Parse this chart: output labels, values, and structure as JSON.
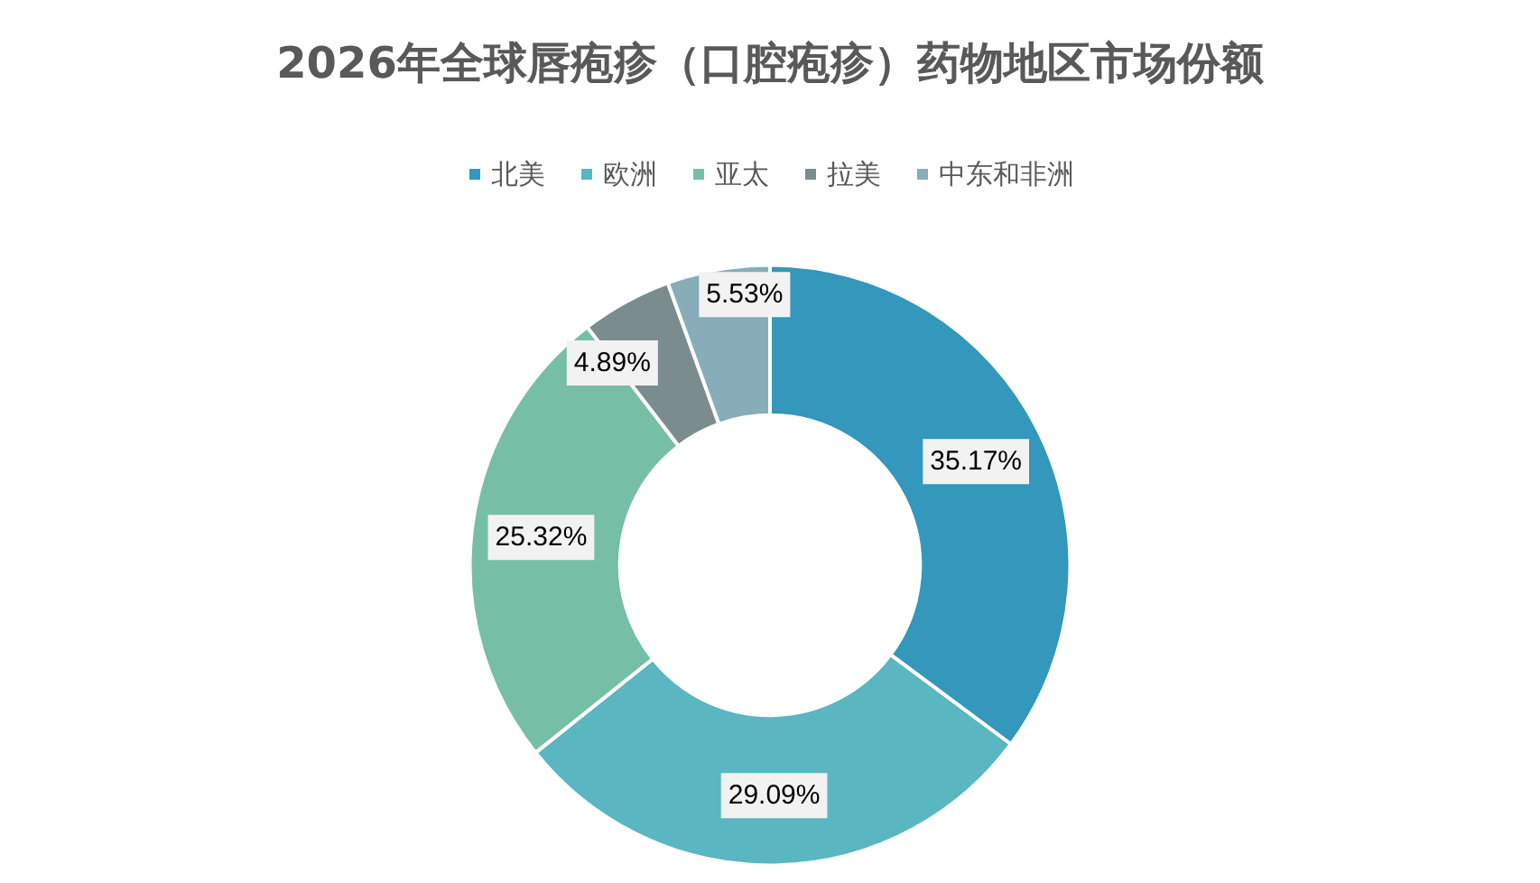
{
  "chart_data": {
    "type": "donut",
    "title": "2026年全球唇疱疹（口腔疱疹）药物地区市场份额",
    "categories": [
      "北美",
      "欧洲",
      "亚太",
      "拉美",
      "中东和非洲"
    ],
    "values": [
      35.17,
      29.09,
      25.32,
      4.89,
      5.53
    ],
    "value_labels": [
      "35.17%",
      "29.09%",
      "25.32%",
      "4.89%",
      "5.53%"
    ],
    "colors": [
      "#3497bc",
      "#5ab6c0",
      "#76bfa6",
      "#7a8c8e",
      "#86adb8"
    ],
    "legend": "top"
  }
}
